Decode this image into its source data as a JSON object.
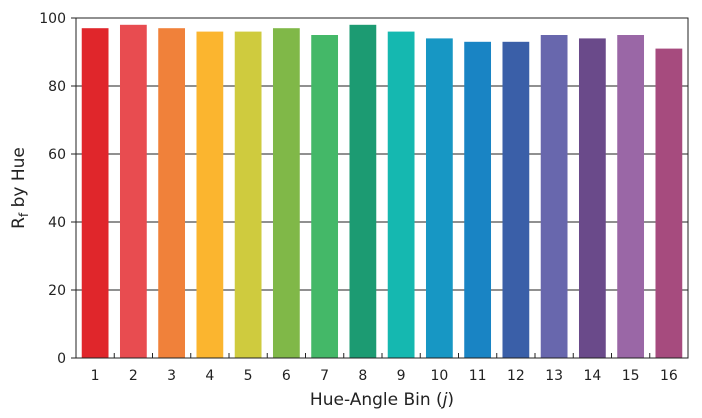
{
  "chart_data": {
    "type": "bar",
    "categories": [
      "1",
      "2",
      "3",
      "4",
      "5",
      "6",
      "7",
      "8",
      "9",
      "10",
      "11",
      "12",
      "13",
      "14",
      "15",
      "16"
    ],
    "values": [
      97,
      98,
      97,
      96,
      96,
      97,
      95,
      98,
      96,
      94,
      93,
      93,
      95,
      94,
      95,
      91
    ],
    "colors": [
      "#e0262b",
      "#e84c50",
      "#f0813a",
      "#fbb52f",
      "#cfcb3e",
      "#80b848",
      "#44b868",
      "#1c9b72",
      "#15b8b0",
      "#1797c4",
      "#1984c4",
      "#3a5fa8",
      "#6867ad",
      "#6a4a8a",
      "#9a67a6",
      "#a64b7e"
    ],
    "xlabel_prefix": "Hue-Angle Bin (",
    "xlabel_var": "j",
    "xlabel_suffix": ")",
    "ylabel_main": "R",
    "ylabel_sub": "f",
    "ylabel_rest": " by Hue",
    "ylim": [
      0,
      100
    ],
    "yticks": [
      0,
      20,
      40,
      60,
      80,
      100
    ],
    "grid": true
  }
}
